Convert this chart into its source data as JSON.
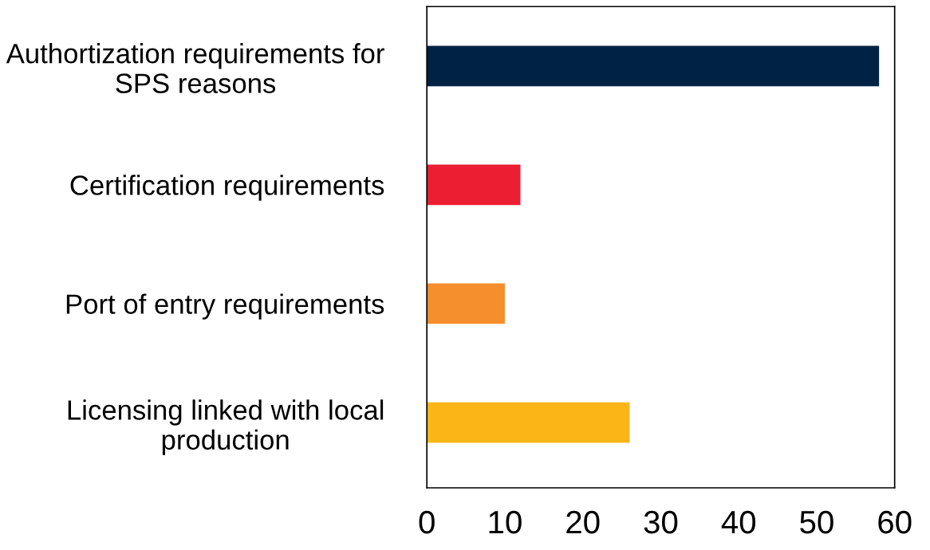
{
  "chart_data": {
    "type": "bar",
    "orientation": "horizontal",
    "categories": [
      "Authortization requirements for SPS reasons",
      "Certification requirements",
      "Port of entry requirements",
      "Licensing linked with local production"
    ],
    "values": [
      58,
      12,
      10,
      26
    ],
    "colors": [
      "#002345",
      "#ec1f32",
      "#f58e2c",
      "#fbb517"
    ],
    "xlim": [
      0,
      60
    ],
    "xticks": [
      0,
      10,
      20,
      30,
      40,
      50,
      60
    ],
    "grid": false
  }
}
